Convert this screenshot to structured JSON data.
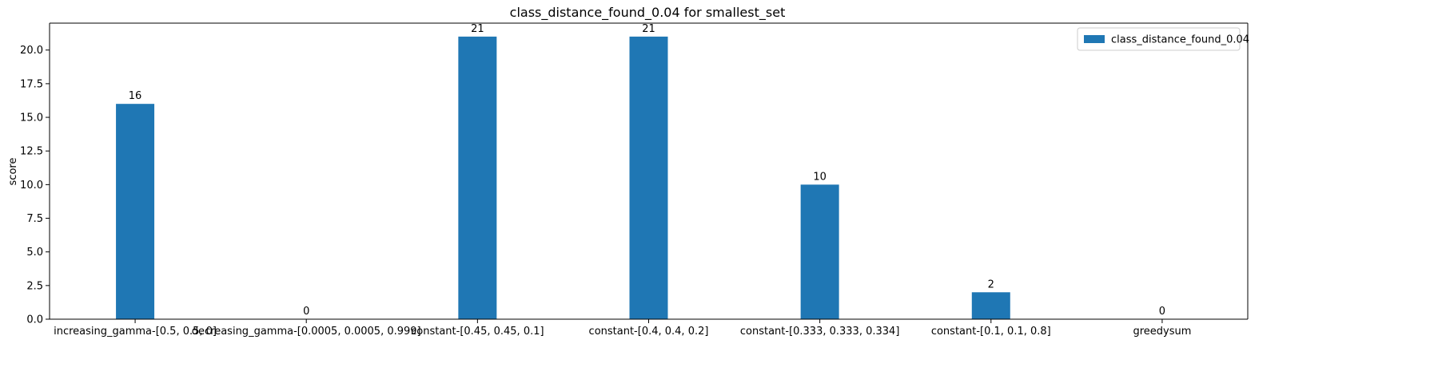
{
  "chart_data": {
    "type": "bar",
    "title": "class_distance_found_0.04 for smallest_set",
    "xlabel": "",
    "ylabel": "score",
    "ylim": [
      0,
      22
    ],
    "yticks": [
      0.0,
      2.5,
      5.0,
      7.5,
      10.0,
      12.5,
      15.0,
      17.5,
      20.0
    ],
    "ytick_labels": [
      "0.0",
      "2.5",
      "5.0",
      "7.5",
      "10.0",
      "12.5",
      "15.0",
      "17.5",
      "20.0"
    ],
    "categories": [
      "increasing_gamma-[0.5, 0.5, 0]",
      "decreasing_gamma-[0.0005, 0.0005, 0.999]",
      "constant-[0.45, 0.45, 0.1]",
      "constant-[0.4, 0.4, 0.2]",
      "constant-[0.333, 0.333, 0.334]",
      "constant-[0.1, 0.1, 0.8]",
      "greedysum"
    ],
    "series": [
      {
        "name": "class_distance_found_0.04",
        "values": [
          16,
          0,
          21,
          21,
          10,
          2,
          0
        ],
        "color": "#1f77b4"
      }
    ],
    "data_labels": [
      "16",
      "0",
      "21",
      "21",
      "10",
      "2",
      "0"
    ],
    "grid": false,
    "legend_position": "upper right"
  }
}
